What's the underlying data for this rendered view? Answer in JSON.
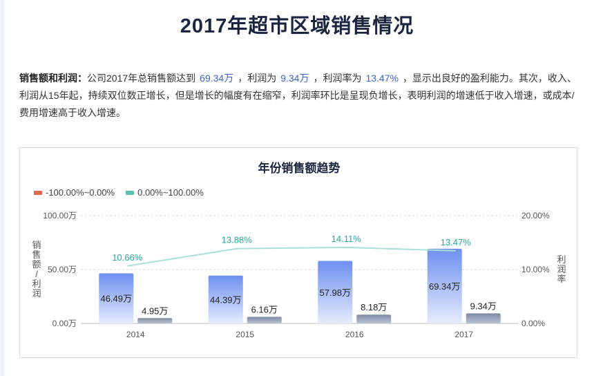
{
  "page_title": "2017年超市区域销售情况",
  "summary": {
    "lead": "销售额和利润：",
    "p1": "公司2017年总销售额达到",
    "v1": "69.34万",
    "p2": "，利润为",
    "v2": "9.34万",
    "p3": "，利润率为",
    "v3": "13.47%",
    "p4": "，显示出良好的盈利能力。其次，收入、利润从15年起，持续双位数正增长，但是增长的幅度有在缩窄，利润率环比是呈现负增长，表明利润的增速低于收入增速，或成本/费用增速高于收入增速。"
  },
  "colors": {
    "bar_sales_top": "#6d8ff0",
    "bar_sales_bottom": "#e6ecfd",
    "bar_profit_top": "#7d8aa3",
    "bar_profit_bottom": "#b9c3d6",
    "line": "#a9e0d8",
    "line_label": "#2aa89a",
    "legend_neg": "#e2684e",
    "legend_pos": "#5cc0b5"
  },
  "chart_data": {
    "type": "bar",
    "title": "年份销售额趋势",
    "categories": [
      "2014",
      "2015",
      "2016",
      "2017"
    ],
    "series": [
      {
        "kind": "bar",
        "axis": "left",
        "values": [
          46.49,
          44.39,
          57.98,
          69.34
        ],
        "labels": [
          "46.49万",
          "44.39万",
          "57.98万",
          "69.34万"
        ]
      },
      {
        "kind": "bar",
        "axis": "left",
        "values": [
          4.95,
          6.16,
          8.18,
          9.34
        ],
        "labels": [
          "4.95万",
          "6.16万",
          "8.18万",
          "9.34万"
        ]
      },
      {
        "kind": "line",
        "axis": "right",
        "values": [
          10.66,
          13.88,
          14.11,
          13.47
        ],
        "labels": [
          "10.66%",
          "13.88%",
          "14.11%",
          "13.47%"
        ]
      }
    ],
    "legend": {
      "position": "top-left",
      "items": [
        {
          "label": "-100.00%~0.00%",
          "color_key": "legend_neg"
        },
        {
          "label": "0.00%~100.00%",
          "color_key": "legend_pos"
        }
      ]
    },
    "y_left": {
      "label": "销售额/利润",
      "min": 0,
      "max": 100,
      "ticks": [
        0,
        50,
        100
      ],
      "tick_labels": [
        "0.00万",
        "50.00万",
        "100.00万"
      ]
    },
    "y_right": {
      "label": "利润率",
      "min": 0,
      "max": 20,
      "ticks": [
        0,
        10,
        20
      ],
      "tick_labels": [
        "0.00%",
        "10.00%",
        "20.00%"
      ]
    },
    "grid": true
  }
}
